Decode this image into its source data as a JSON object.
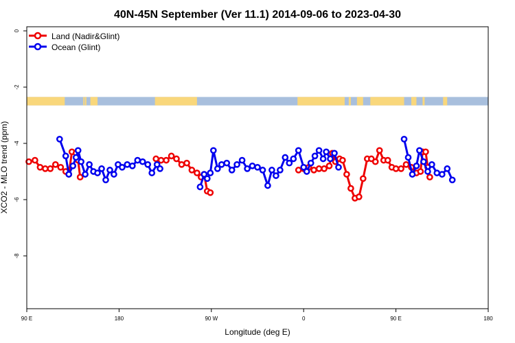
{
  "chart_data": {
    "type": "line",
    "title": "40N-45N September (Ver 11.1)   2014-09-06 to 2023-04-30",
    "xlabel": "Longitude (deg E)",
    "ylabel": "XCO2 - MLO trend (ppm)",
    "xlim": [
      90,
      540
    ],
    "ylim": [
      -10,
      0
    ],
    "x_ticks": [
      {
        "value": 90,
        "label": "90 E"
      },
      {
        "value": 180,
        "label": "180"
      },
      {
        "value": 270,
        "label": "90 W"
      },
      {
        "value": 360,
        "label": "0"
      },
      {
        "value": 450,
        "label": "90 E"
      },
      {
        "value": 540,
        "label": "180"
      }
    ],
    "y_ticks": [
      {
        "value": 0,
        "label": "0"
      },
      {
        "value": -2,
        "label": "-2"
      },
      {
        "value": -4,
        "label": "-4"
      },
      {
        "value": -6,
        "label": "-6"
      },
      {
        "value": -8,
        "label": "-8"
      }
    ],
    "grid": false,
    "legend_position": "top-left",
    "land_ocean_strip": {
      "y_range": [
        -2.65,
        -2.35
      ],
      "ocean_color": "#a8bfdd",
      "land_color": "#f9d77b",
      "land_x_ranges": [
        [
          90,
          127
        ],
        [
          145,
          146
        ],
        [
          146.5,
          147.5
        ],
        [
          147.5,
          148
        ],
        [
          152,
          159
        ],
        [
          215,
          256
        ],
        [
          354,
          400
        ],
        [
          404,
          406
        ],
        [
          412,
          418
        ],
        [
          425,
          458
        ],
        [
          465,
          470
        ],
        [
          476,
          478
        ],
        [
          496,
          500
        ]
      ]
    },
    "series": [
      {
        "name": "Land (Nadir&Glint)",
        "color": "#ee0000",
        "segments": [
          [
            [
              92,
              -4.65
            ],
            [
              98,
              -4.6
            ],
            [
              103,
              -4.85
            ],
            [
              108,
              -4.9
            ],
            [
              113,
              -4.9
            ],
            [
              118,
              -4.75
            ],
            [
              123,
              -4.85
            ],
            [
              128,
              -5.0
            ],
            [
              131,
              -5.1
            ],
            [
              134,
              -4.3
            ],
            [
              138,
              -4.35
            ],
            [
              140,
              -4.6
            ],
            [
              142,
              -5.2
            ]
          ],
          [
            [
              216,
              -4.55
            ],
            [
              221,
              -4.6
            ],
            [
              226,
              -4.6
            ],
            [
              231,
              -4.45
            ],
            [
              236,
              -4.55
            ],
            [
              241,
              -4.75
            ],
            [
              246,
              -4.7
            ],
            [
              251,
              -4.95
            ],
            [
              256,
              -5.05
            ],
            [
              260,
              -5.2
            ],
            [
              263,
              -5.1
            ],
            [
              266,
              -5.7
            ],
            [
              269,
              -5.75
            ]
          ],
          [
            [
              355,
              -4.95
            ],
            [
              360,
              -4.9
            ],
            [
              365,
              -4.85
            ],
            [
              370,
              -4.95
            ],
            [
              375,
              -4.9
            ],
            [
              380,
              -4.9
            ],
            [
              385,
              -4.8
            ],
            [
              388,
              -4.35
            ],
            [
              391,
              -4.65
            ],
            [
              395,
              -4.55
            ],
            [
              398,
              -4.6
            ],
            [
              402,
              -5.1
            ],
            [
              406,
              -5.6
            ],
            [
              410,
              -5.95
            ],
            [
              414,
              -5.9
            ],
            [
              418,
              -5.25
            ],
            [
              422,
              -4.55
            ],
            [
              426,
              -4.55
            ],
            [
              430,
              -4.65
            ],
            [
              434,
              -4.25
            ],
            [
              438,
              -4.6
            ],
            [
              442,
              -4.6
            ],
            [
              446,
              -4.85
            ],
            [
              450,
              -4.9
            ],
            [
              455,
              -4.9
            ],
            [
              460,
              -4.75
            ],
            [
              465,
              -4.85
            ],
            [
              470,
              -5.05
            ],
            [
              474,
              -5.0
            ],
            [
              476,
              -4.3
            ],
            [
              479,
              -4.3
            ],
            [
              481,
              -4.85
            ],
            [
              483,
              -5.2
            ]
          ]
        ]
      },
      {
        "name": "Ocean (Glint)",
        "color": "#0000ee",
        "segments": [
          [
            [
              122,
              -3.85
            ],
            [
              128,
              -4.45
            ],
            [
              131,
              -5.1
            ],
            [
              135,
              -4.8
            ],
            [
              138,
              -4.5
            ],
            [
              140,
              -4.25
            ],
            [
              143,
              -4.65
            ],
            [
              147,
              -5.1
            ],
            [
              151,
              -4.75
            ],
            [
              155,
              -5.0
            ],
            [
              159,
              -5.05
            ],
            [
              163,
              -4.9
            ],
            [
              167,
              -5.3
            ],
            [
              171,
              -4.95
            ],
            [
              175,
              -5.1
            ],
            [
              179,
              -4.75
            ],
            [
              183,
              -4.85
            ],
            [
              188,
              -4.75
            ],
            [
              193,
              -4.8
            ],
            [
              198,
              -4.6
            ],
            [
              203,
              -4.65
            ],
            [
              208,
              -4.75
            ],
            [
              212,
              -5.05
            ],
            [
              217,
              -4.75
            ],
            [
              220,
              -4.9
            ]
          ],
          [
            [
              259,
              -5.55
            ],
            [
              263,
              -5.1
            ],
            [
              266,
              -5.25
            ],
            [
              269,
              -5.05
            ],
            [
              272,
              -4.25
            ],
            [
              276,
              -4.9
            ],
            [
              280,
              -4.75
            ],
            [
              285,
              -4.7
            ],
            [
              290,
              -4.95
            ],
            [
              295,
              -4.75
            ],
            [
              300,
              -4.6
            ],
            [
              305,
              -4.9
            ],
            [
              310,
              -4.8
            ],
            [
              315,
              -4.85
            ],
            [
              320,
              -4.95
            ],
            [
              325,
              -5.5
            ],
            [
              329,
              -4.95
            ],
            [
              333,
              -5.15
            ],
            [
              337,
              -4.95
            ],
            [
              342,
              -4.5
            ],
            [
              346,
              -4.7
            ],
            [
              350,
              -4.55
            ],
            [
              355,
              -4.25
            ],
            [
              360,
              -4.85
            ],
            [
              363,
              -5.0
            ],
            [
              367,
              -4.7
            ],
            [
              371,
              -4.45
            ],
            [
              375,
              -4.25
            ],
            [
              379,
              -4.55
            ],
            [
              382,
              -4.3
            ],
            [
              386,
              -4.55
            ],
            [
              390,
              -4.35
            ],
            [
              394,
              -4.85
            ]
          ],
          [
            [
              458,
              -3.85
            ],
            [
              462,
              -4.5
            ],
            [
              466,
              -5.1
            ],
            [
              470,
              -4.8
            ],
            [
              473,
              -4.25
            ],
            [
              477,
              -4.65
            ],
            [
              481,
              -5.0
            ],
            [
              485,
              -4.75
            ],
            [
              490,
              -5.05
            ],
            [
              495,
              -5.1
            ],
            [
              500,
              -4.9
            ],
            [
              505,
              -5.3
            ]
          ]
        ]
      }
    ]
  }
}
